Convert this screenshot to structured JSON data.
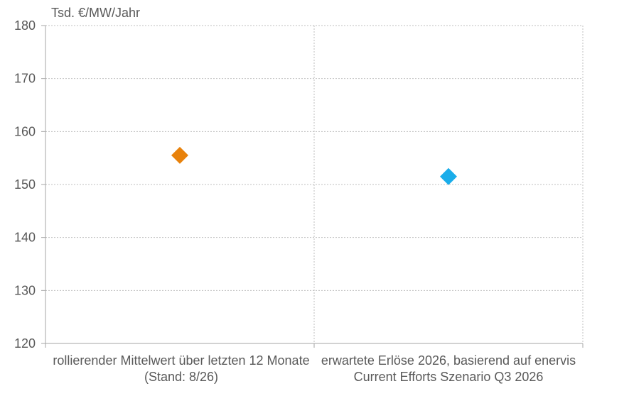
{
  "chart_data": {
    "type": "scatter",
    "ylabel": "Tsd. €/MW/Jahr",
    "ylim": [
      120,
      180
    ],
    "yticks": [
      "120",
      "130",
      "140",
      "150",
      "160",
      "170",
      "180"
    ],
    "categories": [
      "rollierender Mittelwert über letzten 12 Monate (Stand: 8/26)",
      "erwartete Erlöse 2026, basierend auf enervis Current Efforts Szenario Q3 2026"
    ],
    "points": [
      {
        "category": 0,
        "value": 155.5,
        "color": "#E8820C",
        "marker": "diamond"
      },
      {
        "category": 1,
        "value": 151.5,
        "color": "#1AADEA",
        "marker": "diamond"
      }
    ],
    "grid": true,
    "grid_style": "dotted",
    "grid_color": "#BFBFBF"
  }
}
